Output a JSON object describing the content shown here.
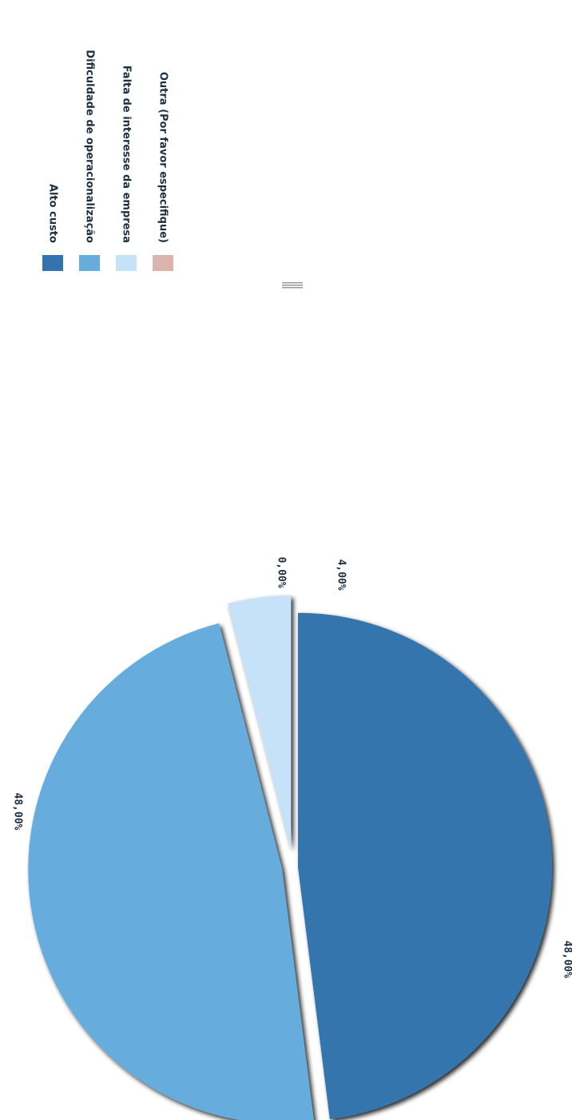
{
  "chart_data": {
    "type": "pie",
    "categories": [
      "Alto custo",
      "Dificuldade de operacionalização",
      "Falta de interesse da empresa",
      "Outra (Por favor especifique)"
    ],
    "values": [
      48.0,
      48.0,
      4.0,
      0.0
    ],
    "labels": [
      "48,00%",
      "48,00%",
      "4,00%",
      "0,00%"
    ],
    "colors": [
      "#3474ae",
      "#66acdc",
      "#c6e2f8",
      "#dcb4ae"
    ],
    "legend": "top"
  }
}
